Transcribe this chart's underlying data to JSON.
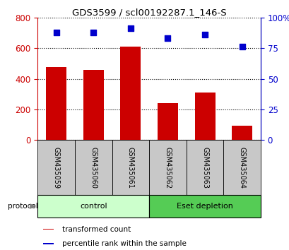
{
  "title": "GDS3599 / scl00192287.1_146-S",
  "samples": [
    "GSM435059",
    "GSM435060",
    "GSM435061",
    "GSM435062",
    "GSM435063",
    "GSM435064"
  ],
  "transformed_counts": [
    475,
    460,
    610,
    240,
    310,
    95
  ],
  "percentile_ranks": [
    88,
    88,
    91,
    83,
    86,
    76
  ],
  "ylim_left": [
    0,
    800
  ],
  "ylim_right": [
    0,
    100
  ],
  "yticks_left": [
    0,
    200,
    400,
    600,
    800
  ],
  "yticks_right": [
    0,
    25,
    50,
    75,
    100
  ],
  "ytick_labels_right": [
    "0",
    "25",
    "50",
    "75",
    "100%"
  ],
  "bar_color": "#cc0000",
  "dot_color": "#0000cc",
  "bar_width": 0.55,
  "groups": [
    {
      "label": "control",
      "indices": [
        0,
        1,
        2
      ],
      "color": "#ccffcc"
    },
    {
      "label": "Eset depletion",
      "indices": [
        3,
        4,
        5
      ],
      "color": "#55cc55"
    }
  ],
  "protocol_label": "protocol",
  "legend_bar_label": "transformed count",
  "legend_dot_label": "percentile rank within the sample",
  "background_color": "#ffffff",
  "grid_color": "#000000",
  "tick_area_bg": "#c8c8c8",
  "left_axis_color": "#cc0000",
  "right_axis_color": "#0000cc"
}
